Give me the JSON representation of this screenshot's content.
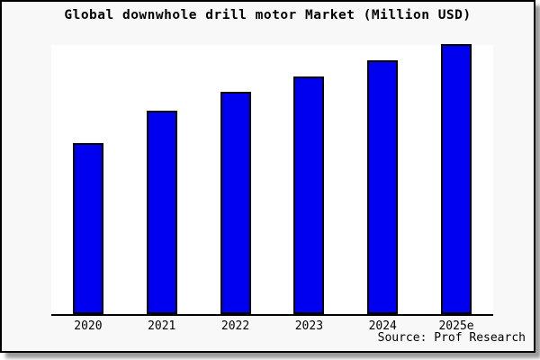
{
  "chart": {
    "title": "Global downwhole drill motor Market (Million USD)",
    "source": "Source: Prof Research",
    "bar_fill_color": "#0000f0",
    "bar_border_color": "#000000",
    "card_background": "#f8f8f8",
    "plot_background": "#ffffff"
  },
  "chart_data": {
    "type": "bar",
    "title": "Global downwhole drill motor Market (Million USD)",
    "categories": [
      "2020",
      "2021",
      "2022",
      "2023",
      "2024",
      "2025e"
    ],
    "values": [
      63,
      75,
      82,
      88,
      94,
      100
    ],
    "series_note": "No y-axis shown; values are relative heights normalized to 2025e = 100",
    "xlabel": "",
    "ylabel": "",
    "ylim": [
      0,
      100
    ],
    "grid": false,
    "legend": "none",
    "annotations": [
      "Source: Prof Research"
    ]
  }
}
